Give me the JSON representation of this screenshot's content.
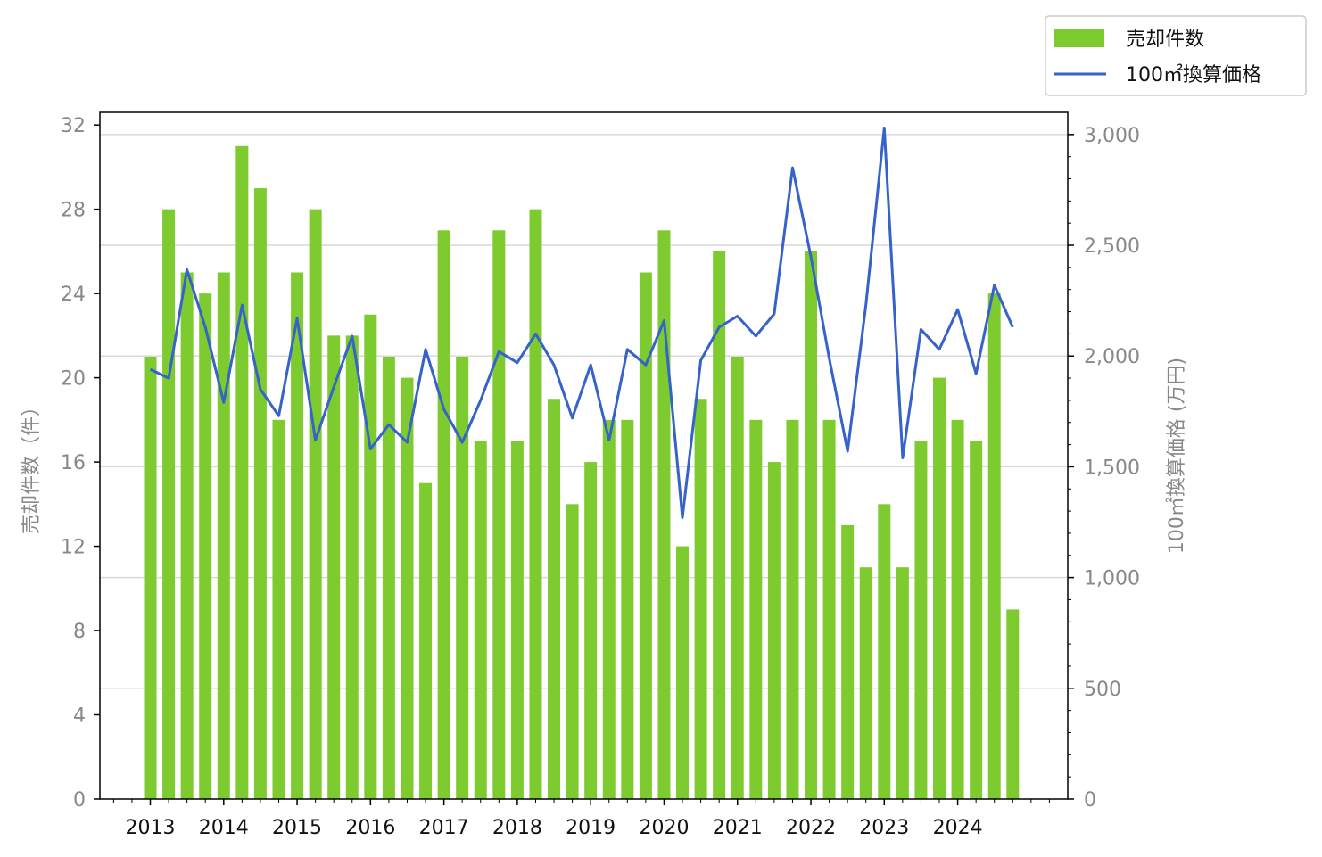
{
  "chart_data": {
    "type": "bar",
    "title": "",
    "xlabel": "",
    "ylabel": "売却件数（件）",
    "ylabel_right": "100㎡換算価格 (万円)",
    "ylim": [
      0,
      32.6
    ],
    "ylim_right": [
      0,
      3100
    ],
    "yticks_left": [
      "0",
      "4",
      "8",
      "12",
      "16",
      "20",
      "24",
      "28",
      "32"
    ],
    "yticks_right": [
      "0",
      "500",
      "1,000",
      "1,500",
      "2,000",
      "2,500",
      "3,000"
    ],
    "xtick_labels": [
      "2013",
      "2014",
      "2015",
      "2016",
      "2017",
      "2018",
      "2019",
      "2020",
      "2021",
      "2022",
      "2023",
      "2024"
    ],
    "grid": true,
    "legend_position": "top-right",
    "colors": {
      "bar": "#7ecb30",
      "line": "#3563c9"
    },
    "categories": [
      "2013Q1",
      "2013Q2",
      "2013Q3",
      "2013Q4",
      "2014Q1",
      "2014Q2",
      "2014Q3",
      "2014Q4",
      "2015Q1",
      "2015Q2",
      "2015Q3",
      "2015Q4",
      "2016Q1",
      "2016Q2",
      "2016Q3",
      "2016Q4",
      "2017Q1",
      "2017Q2",
      "2017Q3",
      "2017Q4",
      "2018Q1",
      "2018Q2",
      "2018Q3",
      "2018Q4",
      "2019Q1",
      "2019Q2",
      "2019Q3",
      "2019Q4",
      "2020Q1",
      "2020Q2",
      "2020Q3",
      "2020Q4",
      "2021Q1",
      "2021Q2",
      "2021Q3",
      "2021Q4",
      "2022Q1",
      "2022Q2",
      "2022Q3",
      "2022Q4",
      "2023Q1",
      "2023Q2",
      "2023Q3",
      "2023Q4",
      "2024Q1",
      "2024Q2",
      "2024Q3",
      "2024Q4"
    ],
    "series": [
      {
        "name": "売却件数",
        "type": "bar",
        "axis": "left",
        "values": [
          21,
          28,
          25,
          24,
          25,
          31,
          29,
          18,
          25,
          28,
          22,
          22,
          23,
          21,
          20,
          15,
          27,
          21,
          17,
          27,
          17,
          28,
          19,
          14,
          16,
          18,
          18,
          25,
          27,
          12,
          19,
          26,
          21,
          18,
          16,
          18,
          26,
          18,
          13,
          11,
          14,
          11,
          17,
          20,
          18,
          17,
          24,
          9
        ]
      },
      {
        "name": "100㎡換算価格",
        "type": "line",
        "axis": "right",
        "values": [
          1940,
          1900,
          2390,
          2130,
          1790,
          2230,
          1850,
          1730,
          2170,
          1620,
          1860,
          2090,
          1580,
          1690,
          1610,
          2030,
          1760,
          1610,
          1800,
          2020,
          1970,
          2100,
          1960,
          1720,
          1960,
          1620,
          2030,
          1960,
          2160,
          1270,
          1980,
          2130,
          2180,
          2090,
          2190,
          2850,
          2450,
          1990,
          1570,
          2230,
          3030,
          1540,
          2120,
          2030,
          2210,
          1920,
          2320,
          2130
        ]
      }
    ]
  }
}
